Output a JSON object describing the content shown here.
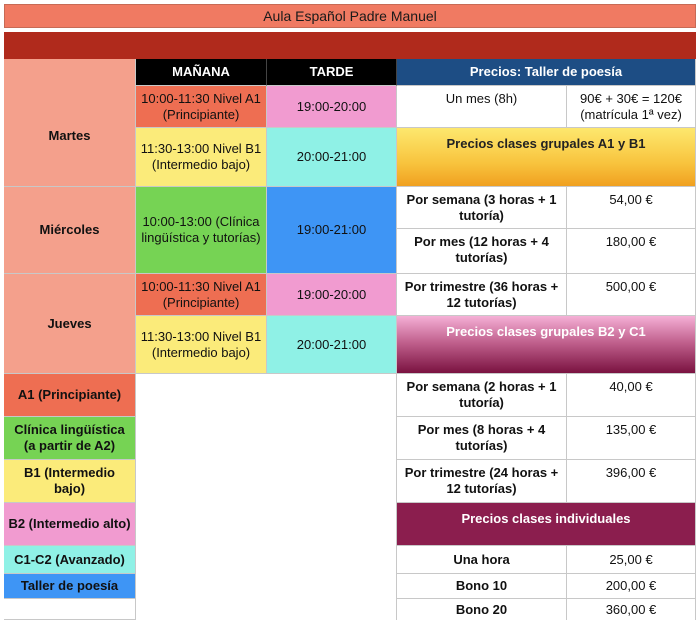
{
  "title": "Aula Español Padre Manuel",
  "headers": {
    "morning": "MAÑANA",
    "afternoon": "TARDE",
    "poetry_prices": "Precios: Taller de poesía"
  },
  "days": {
    "tuesday": "Martes",
    "wednesday": "Miércoles",
    "thursday": "Jueves"
  },
  "schedule": {
    "tue_m1": "10:00-11:30 Nivel A1 (Principiante)",
    "tue_a1": "19:00-20:00",
    "tue_m2": "11:30-13:00 Nivel B1 (Intermedio bajo)",
    "tue_a2": "20:00-21:00",
    "wed_m": "10:00-13:00 (Clínica lingüística y tutorías)",
    "wed_a": "19:00-21:00",
    "thu_m1": "10:00-11:30 Nivel A1 (Principiante)",
    "thu_a1": "19:00-20:00",
    "thu_m2": "11:30-13:00 Nivel B1 (Intermedio bajo)",
    "thu_a2": "20:00-21:00"
  },
  "poetry": {
    "label": "Un mes (8h)",
    "price": "90€ + 30€ = 120€ (matrícula 1ª vez)"
  },
  "group_a1_b1": {
    "header": "Precios clases grupales A1 y B1",
    "rows": [
      {
        "label": "Por semana (3 horas + 1 tutoría)",
        "price": "54,00 €"
      },
      {
        "label": "Por mes (12 horas + 4 tutorías)",
        "price": "180,00 €"
      },
      {
        "label": "Por trimestre (36 horas + 12 tutorías)",
        "price": "500,00 €"
      }
    ]
  },
  "group_b2_c1": {
    "header": "Precios clases grupales B2 y C1",
    "rows": [
      {
        "label": "Por semana (2 horas + 1 tutoría)",
        "price": "40,00 €"
      },
      {
        "label": "Por mes (8 horas + 4 tutorías)",
        "price": "135,00 €"
      },
      {
        "label": "Por trimestre (24 horas + 12 tutorías)",
        "price": "396,00 €"
      }
    ]
  },
  "individual": {
    "header": "Precios clases individuales",
    "rows": [
      {
        "label": "Una hora",
        "price": "25,00 €"
      },
      {
        "label": "Bono 10",
        "price": "200,00 €"
      },
      {
        "label": "Bono 20",
        "price": "360,00 €"
      }
    ]
  },
  "legend": {
    "a1": "A1 (Principiante)",
    "clinic": "Clínica lingüística (a partir de A2)",
    "b1": "B1 (Intermedio bajo)",
    "b2": "B2 (Intermedio alto)",
    "c1c2": "C1-C2 (Avanzado)",
    "poetry": "Taller de poesía"
  },
  "colors": {
    "title": "#f07a62",
    "header_bar": "#b02a1c",
    "day": "#f4a08c",
    "a1": "#ee6e52",
    "b1": "#fbeb7a",
    "b2": "#f19bd0",
    "c1c2": "#8ff1e6",
    "clinic": "#76d354",
    "poetry": "#3e95f5",
    "navy": "#1d4d84",
    "maroon": "#8b1e4e"
  }
}
